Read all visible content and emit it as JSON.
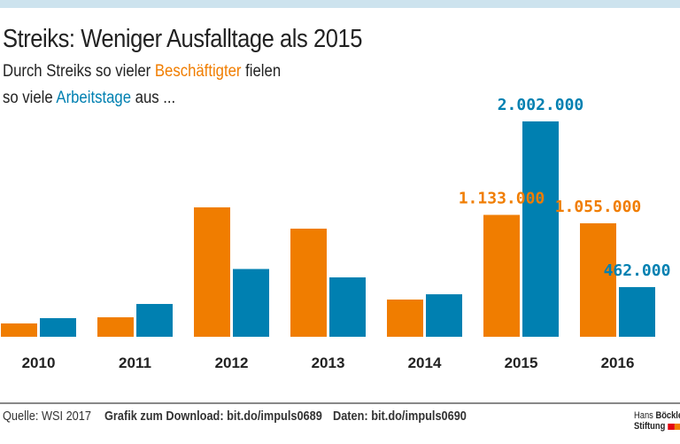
{
  "title": "Streiks: Weniger Ausfalltage als 2015",
  "subtitle": {
    "line1_pre": "Durch Streiks so vieler ",
    "line1_hl": "Beschäftigter",
    "line1_post": " fielen",
    "line2_pre": "so viele ",
    "line2_hl": "Arbeitstage",
    "line2_post": " aus ..."
  },
  "colors": {
    "beschaeftigte": "#f07d00",
    "arbeitstage": "#0080b1",
    "topbar": "#cde3ee"
  },
  "chart_data": {
    "type": "bar",
    "categories": [
      "2010",
      "2011",
      "2012",
      "2013",
      "2014",
      "2015",
      "2016"
    ],
    "series": [
      {
        "name": "Beschäftigter",
        "color": "#f07d00",
        "values": [
          124000,
          181000,
          1203000,
          1005000,
          346000,
          1133000,
          1055000
        ]
      },
      {
        "name": "Arbeitstage",
        "color": "#0080b1",
        "values": [
          173000,
          305000,
          630000,
          552000,
          395000,
          2002000,
          462000
        ]
      }
    ],
    "data_labels": [
      {
        "series": 0,
        "category": "2015",
        "text": "1.133.000"
      },
      {
        "series": 1,
        "category": "2015",
        "text": "2.002.000"
      },
      {
        "series": 0,
        "category": "2016",
        "text": "1.055.000"
      },
      {
        "series": 1,
        "category": "2016",
        "text": "462.000"
      }
    ],
    "ylim": [
      0,
      2002000
    ],
    "grid": false
  },
  "footer": {
    "source": "Quelle: WSI 2017",
    "download": "Grafik zum Download: bit.do/impuls0689",
    "data": "Daten: bit.do/impuls0690",
    "logo_line1_a": "Hans ",
    "logo_line1_b": "Böckler",
    "logo_line2": "Stiftung"
  }
}
